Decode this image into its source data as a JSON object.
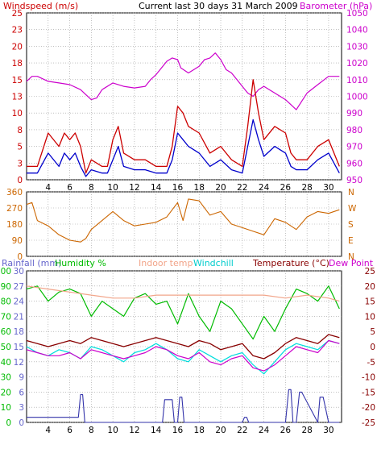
{
  "header": {
    "title": "Current last 30 days 31 March 2009",
    "left_label": "Windspeed (m/s)",
    "right_label": "Barometer (hPa)"
  },
  "colors": {
    "windspeed": "#cc0000",
    "windavg": "#0000cc",
    "barometer": "#cc00cc",
    "winddir": "#cc6600",
    "rainfall": "#3333aa",
    "humidity": "#00bb00",
    "indoor": "#f2a58a",
    "windchill": "#00dddd",
    "temperature": "#880000",
    "dewpoint": "#cc00cc",
    "rainlabel": "#6666cc"
  },
  "bottom_labels": {
    "rainfall": "Rainfall (mm)",
    "humidity": "Humidity %",
    "indoor": "Indoor temp",
    "windchill": "Windchill",
    "temperature": "Temperature (°C)",
    "dewpoint": "Dew Point"
  },
  "chart_data": [
    {
      "type": "line",
      "name": "wind-barometer",
      "x_ticks": [
        "4",
        "6",
        "8",
        "10",
        "12",
        "14",
        "16",
        "18",
        "20",
        "22",
        "24",
        "26",
        "28",
        "30"
      ],
      "x_tick_days": [
        4,
        6,
        8,
        10,
        12,
        14,
        16,
        18,
        20,
        22,
        24,
        26,
        28,
        30
      ],
      "xlim": [
        2,
        31.2
      ],
      "left_axis": {
        "ticks": [
          "0",
          "3",
          "5",
          "8",
          "10",
          "13",
          "15",
          "18",
          "20",
          "23",
          "25"
        ],
        "tick_values": [
          0,
          2.5,
          5,
          7.5,
          10,
          12.5,
          15,
          17.5,
          20,
          22.5,
          25
        ],
        "ylim": [
          0,
          25
        ]
      },
      "right_axis": {
        "ticks": [
          "950",
          "960",
          "970",
          "980",
          "990",
          "1000",
          "1010",
          "1020",
          "1030",
          "1040",
          "1050"
        ],
        "tick_values": [
          950,
          960,
          970,
          980,
          990,
          1000,
          1010,
          1020,
          1030,
          1040,
          1050
        ],
        "ylim": [
          950,
          1050
        ]
      },
      "barometer": {
        "x": [
          2,
          2.5,
          3,
          4,
          5,
          6,
          7,
          7.5,
          8,
          8.5,
          9,
          10,
          11,
          12,
          13,
          13.5,
          14,
          15,
          15.5,
          16,
          16.3,
          17,
          17.5,
          18,
          18.5,
          19,
          19.5,
          20,
          20.5,
          21,
          21.5,
          22,
          22.5,
          23,
          23.5,
          24,
          25,
          26,
          26.5,
          27,
          27.5,
          28,
          29,
          30,
          31
        ],
        "y": [
          1009,
          1012,
          1012,
          1009,
          1008,
          1007,
          1004,
          1001,
          998,
          999,
          1004,
          1008,
          1006,
          1005,
          1006,
          1010,
          1013,
          1021,
          1023,
          1022,
          1017,
          1014,
          1016,
          1018,
          1022,
          1023,
          1026,
          1022,
          1016,
          1014,
          1010,
          1006,
          1002,
          1000,
          1004,
          1006,
          1002,
          998,
          995,
          992,
          997,
          1002,
          1007,
          1012,
          1012
        ]
      },
      "windspeed_peaks": {
        "x": [
          2,
          3,
          4,
          5,
          5.5,
          6,
          6.5,
          7,
          7.5,
          8,
          9,
          9.5,
          10,
          10.5,
          11,
          12,
          13,
          14,
          15,
          15.5,
          16,
          16.5,
          17,
          18,
          19,
          20,
          21,
          22,
          22.5,
          23,
          23.5,
          24,
          25,
          26,
          26.5,
          27,
          28,
          29,
          30,
          31
        ],
        "y": [
          2,
          2,
          7,
          5,
          7,
          6,
          7,
          5,
          1,
          3,
          2,
          2,
          6,
          8,
          4,
          3,
          3,
          2,
          2,
          5,
          11,
          10,
          8,
          7,
          4,
          5,
          3,
          2,
          8,
          15,
          10,
          6,
          8,
          7,
          4,
          3,
          3,
          5,
          6,
          2
        ]
      },
      "windspeed_avg": {
        "x": [
          2,
          3,
          4,
          5,
          5.5,
          6,
          6.5,
          7,
          7.5,
          8,
          9,
          9.5,
          10,
          10.5,
          11,
          12,
          13,
          14,
          15,
          15.5,
          16,
          16.5,
          17,
          18,
          19,
          20,
          21,
          22,
          22.5,
          23,
          23.5,
          24,
          25,
          26,
          26.5,
          27,
          28,
          29,
          30,
          31
        ],
        "y": [
          1,
          1,
          4,
          2,
          4,
          3,
          4,
          2,
          0.5,
          1.5,
          1,
          1,
          3,
          5,
          2,
          1.5,
          1.5,
          1,
          1,
          3,
          7,
          6,
          5,
          4,
          2,
          3,
          1.5,
          1,
          5,
          9,
          6,
          3.5,
          5,
          4,
          2,
          1.5,
          1.5,
          3,
          4,
          1
        ]
      }
    },
    {
      "type": "line",
      "name": "wind-direction",
      "left_axis": {
        "ticks": [
          "0",
          "90",
          "180",
          "270",
          "360"
        ],
        "tick_values": [
          0,
          90,
          180,
          270,
          360
        ],
        "ylim": [
          0,
          360
        ]
      },
      "right_axis": {
        "ticks": [
          "N",
          "E",
          "S",
          "W",
          "N"
        ],
        "tick_values": [
          0,
          90,
          180,
          270,
          360
        ]
      },
      "winddir": {
        "x": [
          2,
          2.5,
          3,
          4,
          5,
          6,
          7,
          7.5,
          8,
          9,
          10,
          11,
          12,
          13,
          14,
          15,
          16,
          16.5,
          17,
          18,
          19,
          20,
          21,
          22,
          23,
          24,
          25,
          26,
          27,
          28,
          29,
          30,
          31
        ],
        "y": [
          290,
          300,
          200,
          170,
          120,
          90,
          80,
          100,
          150,
          200,
          250,
          200,
          170,
          180,
          190,
          220,
          300,
          200,
          320,
          310,
          230,
          250,
          180,
          160,
          140,
          120,
          210,
          190,
          150,
          220,
          250,
          240,
          260
        ]
      }
    },
    {
      "type": "line",
      "name": "rain-humidity-temperature",
      "left_axis": {
        "ticks": [
          "0",
          "3",
          "6",
          "9",
          "12",
          "15",
          "18",
          "21",
          "24",
          "27",
          "30"
        ],
        "tick_values": [
          0,
          3,
          6,
          9,
          12,
          15,
          18,
          21,
          24,
          27,
          30
        ],
        "ylim": [
          0,
          30
        ]
      },
      "left_axis2": {
        "ticks": [
          "0",
          "10",
          "20",
          "30",
          "40",
          "50",
          "60",
          "70",
          "80",
          "90",
          "100"
        ]
      },
      "right_axis": {
        "ticks": [
          "-25",
          "-20",
          "-15",
          "-10",
          "-5",
          "0",
          "5",
          "10",
          "15",
          "20",
          "25"
        ],
        "tick_values": [
          -25,
          -20,
          -15,
          -10,
          -5,
          0,
          5,
          10,
          15,
          20,
          25
        ],
        "ylim": [
          -25,
          25
        ]
      },
      "humidity": {
        "x": [
          2,
          3,
          4,
          5,
          6,
          7,
          8,
          9,
          10,
          11,
          12,
          13,
          14,
          15,
          16,
          17,
          18,
          19,
          20,
          21,
          22,
          23,
          24,
          25,
          26,
          27,
          28,
          29,
          30,
          31
        ],
        "y": [
          88,
          90,
          80,
          86,
          88,
          85,
          70,
          80,
          75,
          70,
          82,
          85,
          78,
          80,
          65,
          85,
          70,
          60,
          80,
          75,
          65,
          55,
          70,
          60,
          75,
          88,
          85,
          80,
          90,
          75
        ]
      },
      "indoor_temp": {
        "x": [
          2,
          4,
          6,
          8,
          10,
          12,
          14,
          16,
          18,
          20,
          22,
          24,
          26,
          28,
          30,
          31
        ],
        "y": [
          20,
          19,
          18,
          17,
          16,
          16,
          17,
          17,
          17,
          17,
          17,
          17,
          16,
          17,
          16,
          15
        ]
      },
      "temperature": {
        "x": [
          2,
          3,
          4,
          5,
          6,
          7,
          8,
          9,
          10,
          11,
          12,
          13,
          14,
          15,
          16,
          17,
          18,
          19,
          20,
          21,
          22,
          23,
          24,
          25,
          26,
          27,
          28,
          29,
          30,
          31
        ],
        "y": [
          2,
          1,
          0,
          1,
          2,
          1,
          3,
          2,
          1,
          0,
          1,
          2,
          3,
          2,
          1,
          0,
          2,
          1,
          -1,
          0,
          1,
          -3,
          -4,
          -2,
          1,
          3,
          2,
          1,
          4,
          3
        ]
      },
      "dewpoint": {
        "x": [
          2,
          3,
          4,
          5,
          6,
          7,
          8,
          9,
          10,
          11,
          12,
          13,
          14,
          15,
          16,
          17,
          18,
          19,
          20,
          21,
          22,
          23,
          24,
          25,
          26,
          27,
          28,
          29,
          30,
          31
        ],
        "y": [
          -1,
          -2,
          -3,
          -3,
          -2,
          -4,
          -1,
          -2,
          -3,
          -4,
          -3,
          -2,
          0,
          -1,
          -3,
          -4,
          -2,
          -5,
          -6,
          -4,
          -3,
          -7,
          -8,
          -6,
          -3,
          0,
          -1,
          -2,
          2,
          1
        ]
      },
      "windchill": {
        "x": [
          2,
          3,
          4,
          5,
          6,
          7,
          8,
          9,
          10,
          11,
          12,
          13,
          14,
          15,
          16,
          17,
          18,
          19,
          20,
          21,
          22,
          23,
          24,
          25,
          26,
          27,
          28,
          29,
          30,
          31
        ],
        "y": [
          0,
          -2,
          -3,
          -1,
          -2,
          -4,
          0,
          -1,
          -3,
          -5,
          -2,
          -1,
          1,
          -1,
          -4,
          -5,
          -1,
          -3,
          -5,
          -3,
          -2,
          -6,
          -9,
          -5,
          -1,
          1,
          0,
          -1,
          2,
          1
        ]
      },
      "rainfall": {
        "x": [
          2,
          6.8,
          7,
          7.2,
          7.4,
          8,
          14.6,
          14.8,
          15,
          15.5,
          15.7,
          16,
          16.2,
          16.4,
          16.6,
          17,
          22,
          22.2,
          22.4,
          22.6,
          25,
          26,
          26.3,
          26.5,
          26.7,
          27,
          27.3,
          27.5,
          29,
          29.2,
          29.5,
          30,
          31
        ],
        "y": [
          1,
          1,
          5.5,
          5.5,
          0,
          0,
          0,
          4.5,
          4.5,
          4.5,
          0,
          0,
          5,
          5,
          0,
          0,
          0,
          1,
          1,
          0,
          0,
          0,
          6.5,
          6.5,
          0,
          0,
          6,
          6,
          0,
          5,
          5,
          0,
          0
        ]
      }
    }
  ]
}
